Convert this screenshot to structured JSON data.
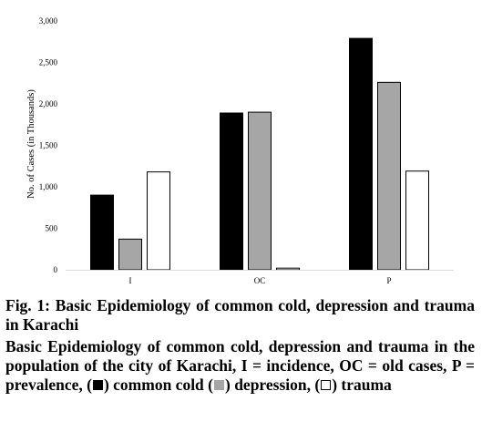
{
  "chart_data": {
    "type": "bar",
    "categories": [
      "I",
      "OC",
      "P"
    ],
    "series": [
      {
        "values": [
          900,
          1890,
          2790
        ],
        "color": "#000000"
      },
      {
        "values": [
          370,
          1900,
          2260
        ],
        "color": "#a6a6a6"
      },
      {
        "values": [
          1180,
          20,
          1190
        ],
        "color": "#ffffff"
      }
    ],
    "ylabel": "No. of Cases (in Thousands)",
    "ylim": [
      0,
      3000
    ],
    "yticks": [
      0,
      500,
      1000,
      1500,
      2000,
      2500,
      3000
    ],
    "ytick_labels": [
      "0",
      "500",
      "1,000",
      "1,500",
      "2,000",
      "2,500",
      "3,000"
    ],
    "grid": false
  },
  "caption": {
    "title": "Fig. 1: Basic Epidemiology of common cold, depression and trauma in Karachi",
    "desc_part1": "Basic Epidemiology of common cold, depression and trauma in the population of the city of Karachi, I = incidence, OC = old cases, P = prevalence, (",
    "desc_part2": ") common cold (",
    "desc_part3": ") depression, (",
    "desc_part4": ") trauma"
  }
}
